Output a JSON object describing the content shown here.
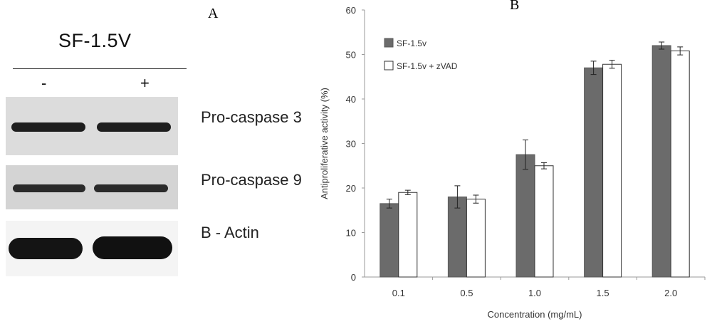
{
  "figure": {
    "panel_a_label": "A",
    "panel_b_label": "B"
  },
  "western_blot": {
    "treatment": "SF-1.5V",
    "lanes": [
      "-",
      "+"
    ],
    "rows": [
      {
        "label": "Pro-caspase 3"
      },
      {
        "label": "Pro-caspase 9"
      },
      {
        "label": "B - Actin"
      }
    ]
  },
  "chart_data": {
    "type": "bar",
    "title": "",
    "xlabel": "Concentration (mg/mL)",
    "ylabel": "Antiproliferative  activity (%)",
    "ylim": [
      0,
      60
    ],
    "yticks": [
      0,
      10,
      20,
      30,
      40,
      50,
      60
    ],
    "categories": [
      "0.1",
      "0.5",
      "1.0",
      "1.5",
      "2.0"
    ],
    "series": [
      {
        "name": "SF-1.5v",
        "color": "#6b6b6b",
        "values": [
          16.5,
          18,
          27.5,
          47,
          52
        ],
        "errors": [
          1.0,
          2.5,
          3.3,
          1.5,
          0.8
        ]
      },
      {
        "name": "SF-1.5v + zVAD",
        "color": "#ffffff",
        "values": [
          19,
          17.5,
          25,
          47.8,
          50.8
        ],
        "errors": [
          0.5,
          0.9,
          0.7,
          0.9,
          0.9
        ]
      }
    ],
    "legend_position": "top-left",
    "grid": false
  }
}
